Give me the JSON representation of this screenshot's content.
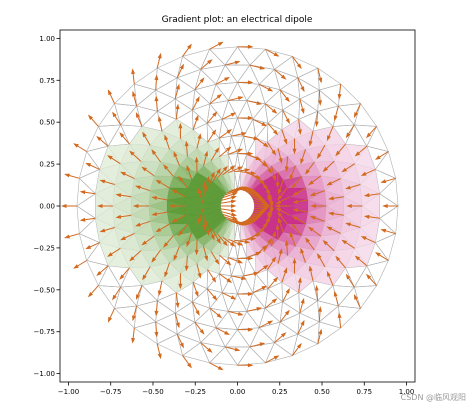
{
  "chart_data": {
    "type": "quiver",
    "title": "Gradient plot: an electrical dipole",
    "xlabel": "",
    "ylabel": "",
    "xlim": [
      -1.05,
      1.05
    ],
    "ylim": [
      -1.05,
      1.05
    ],
    "xticks": [
      "−1.00",
      "−0.75",
      "−0.50",
      "−0.25",
      "0.00",
      "0.25",
      "0.50",
      "0.75",
      "1.00"
    ],
    "yticks": [
      "1.00",
      "0.75",
      "0.50",
      "0.25",
      "0.00",
      "−0.25",
      "−0.50",
      "−0.75",
      "−1.00"
    ],
    "xtick_values": [
      -1,
      -0.75,
      -0.5,
      -0.25,
      0,
      0.25,
      0.5,
      0.75,
      1
    ],
    "ytick_values": [
      1,
      0.75,
      0.5,
      0.25,
      0,
      -0.25,
      -0.5,
      -0.75,
      -1
    ],
    "mesh": {
      "inner_radius": 0.1,
      "outer_radius": 0.95,
      "n_radii": 9,
      "n_angles": 36,
      "color": "#b0b0b0"
    },
    "dipole": {
      "charges": [
        {
          "x": -0.2,
          "y": 0.0,
          "sign": 1,
          "colormap": "PiYG-green"
        },
        {
          "x": 0.2,
          "y": 0.0,
          "sign": -1,
          "colormap": "PiYG-pink"
        }
      ],
      "positive_color": "#4d9221",
      "negative_color": "#c51b7d"
    },
    "arrows": {
      "color": "#d2691e",
      "field": "-grad V"
    },
    "grid": false,
    "legend": false
  },
  "watermark": "CSDN @临风观阳"
}
